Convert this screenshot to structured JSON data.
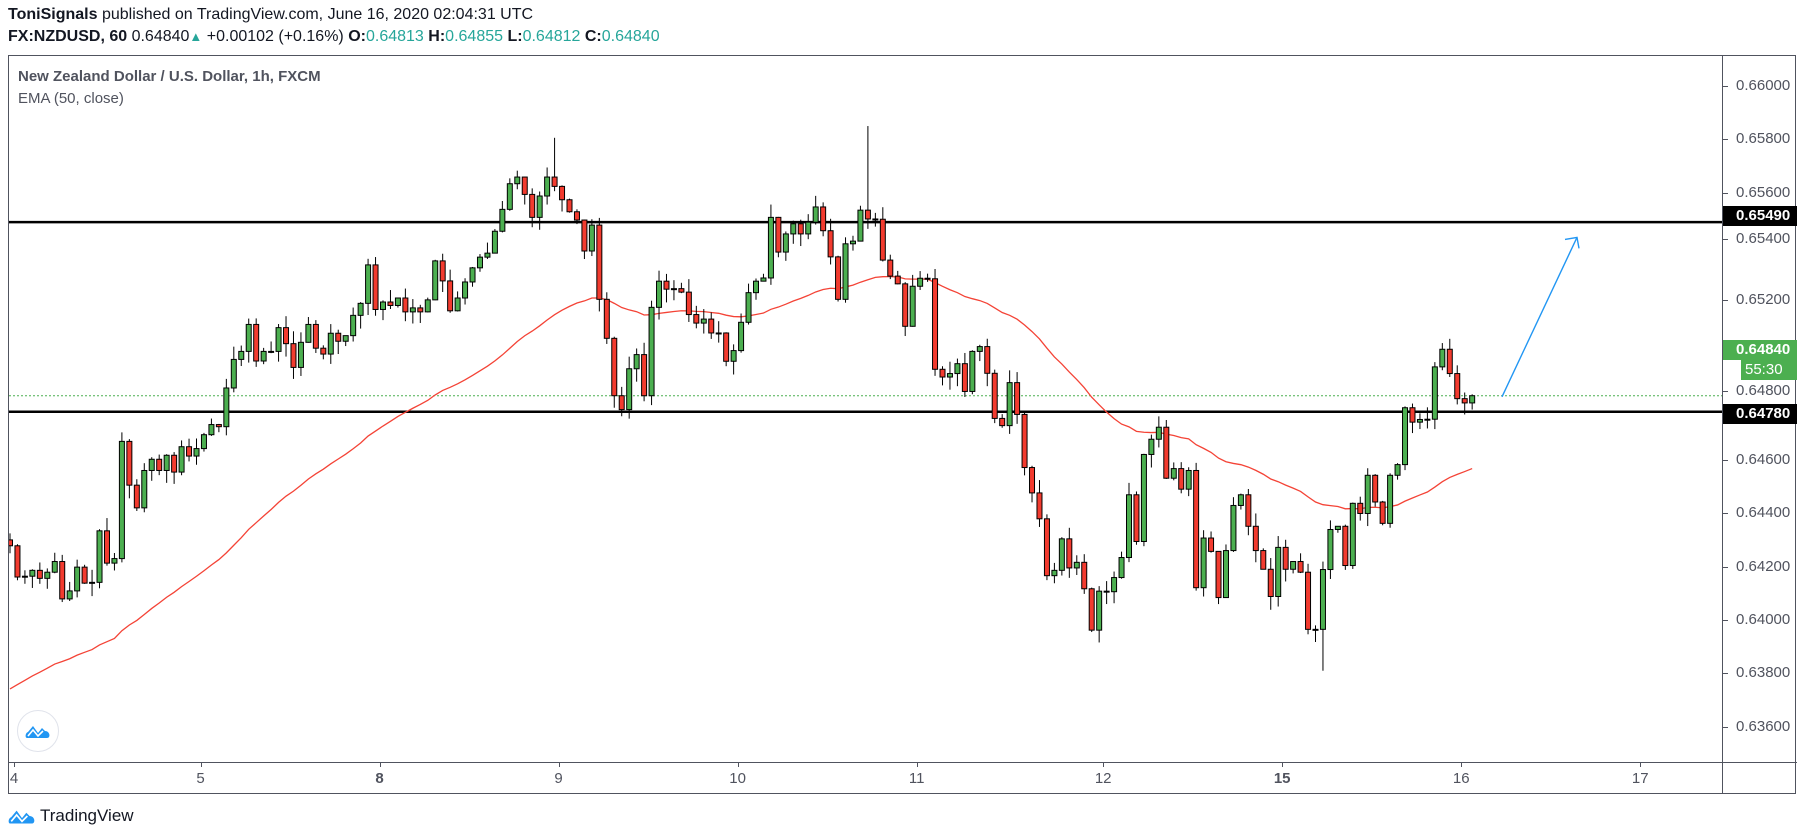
{
  "header": {
    "author": "ToniSignals",
    "published_text": "published on TradingView.com, June 16, 2020 02:04:31 UTC",
    "symbol": "FX:NZDUSD, 60",
    "last": "0.64840",
    "change": "+0.00102 (+0.16%)",
    "o_label": "O:",
    "o": "0.64813",
    "h_label": "H:",
    "h": "0.64855",
    "l_label": "L:",
    "l": "0.64812",
    "c_label": "C:",
    "c": "0.64840"
  },
  "legend": {
    "title": "New Zealand Dollar / U.S. Dollar, 1h, FXCM",
    "indicator": "EMA (50, close)"
  },
  "footer": {
    "brand": "TradingView"
  },
  "colors": {
    "up": "#4caf50",
    "down": "#f23b2f",
    "ema": "#f44336",
    "arrow": "#2196f3",
    "accent": "#26a69a"
  },
  "chart_data": {
    "type": "candlestick",
    "title": "New Zealand Dollar / U.S. Dollar, 1h, FXCM",
    "interval": "1h",
    "ylim": [
      0.635,
      0.6615
    ],
    "y_ticks": [
      "0.66000",
      "0.65800",
      "0.65600",
      "0.65400",
      "0.65200",
      "0.65000",
      "0.64800",
      "0.64600",
      "0.64400",
      "0.64200",
      "0.64000",
      "0.63800",
      "0.63600"
    ],
    "x_ticks": [
      {
        "label": "4",
        "candle_index": 0,
        "bold": false
      },
      {
        "label": "5",
        "candle_index": 25,
        "bold": false
      },
      {
        "label": "8",
        "candle_index": 49,
        "bold": true
      },
      {
        "label": "9",
        "candle_index": 73,
        "bold": false
      },
      {
        "label": "10",
        "candle_index": 97,
        "bold": false
      },
      {
        "label": "11",
        "candle_index": 121,
        "bold": false
      },
      {
        "label": "12",
        "candle_index": 146,
        "bold": false
      },
      {
        "label": "15",
        "candle_index": 170,
        "bold": true
      },
      {
        "label": "16",
        "candle_index": 194,
        "bold": false
      },
      {
        "label": "17",
        "candle_index": 218,
        "bold": false
      }
    ],
    "first_open": 0.643,
    "closes": [
      0.64278,
      0.64161,
      0.64164,
      0.64186,
      0.64156,
      0.64179,
      0.64219,
      0.64079,
      0.64109,
      0.64198,
      0.64138,
      0.64141,
      0.64334,
      0.64213,
      0.6423,
      0.64669,
      0.64505,
      0.6442,
      0.6456,
      0.64602,
      0.6456,
      0.64617,
      0.64554,
      0.64649,
      0.64614,
      0.64642,
      0.64694,
      0.64732,
      0.64724,
      0.64869,
      0.64976,
      0.65006,
      0.65107,
      0.6497,
      0.65006,
      0.65006,
      0.65095,
      0.65035,
      0.64946,
      0.6504,
      0.65107,
      0.65018,
      0.64996,
      0.65074,
      0.65044,
      0.65065,
      0.65141,
      0.65186,
      0.6533,
      0.65163,
      0.65191,
      0.65178,
      0.65206,
      0.65154,
      0.65169,
      0.65154,
      0.65199,
      0.65345,
      0.6527,
      0.65158,
      0.65206,
      0.65266,
      0.65319,
      0.65359,
      0.65374,
      0.65456,
      0.65538,
      0.65634,
      0.65659,
      0.65594,
      0.65508,
      0.65588,
      0.65659,
      0.65624,
      0.65574,
      0.65529,
      0.65498,
      0.65382,
      0.65479,
      0.65201,
      0.65055,
      0.6484,
      0.64788,
      0.64941,
      0.64994,
      0.6484,
      0.65171,
      0.65269,
      0.65239,
      0.65241,
      0.65228,
      0.65144,
      0.65112,
      0.65127,
      0.65075,
      0.65075,
      0.64969,
      0.65009,
      0.65115,
      0.65226,
      0.65269,
      0.65281,
      0.65508,
      0.65378,
      0.65446,
      0.65484,
      0.65446,
      0.6549,
      0.65547,
      0.65458,
      0.6536,
      0.65201,
      0.65409,
      0.65419,
      0.65535,
      0.65502,
      0.65501,
      0.65348,
      0.65288,
      0.65259,
      0.651,
      0.6525,
      0.6528,
      0.65278,
      0.64939,
      0.6491,
      0.64923,
      0.6496,
      0.64856,
      0.65006,
      0.65024,
      0.64924,
      0.64755,
      0.64728,
      0.64889,
      0.6477,
      0.64571,
      0.64476,
      0.64379,
      0.64166,
      0.64186,
      0.64304,
      0.64195,
      0.64216,
      0.64117,
      0.63962,
      0.64108,
      0.64106,
      0.64159,
      0.64234,
      0.64469,
      0.64294,
      0.6462,
      0.64677,
      0.64722,
      0.64531,
      0.64567,
      0.6449,
      0.6456,
      0.64121,
      0.64307,
      0.64257,
      0.64084,
      0.6426,
      0.64429,
      0.64469,
      0.64351,
      0.6426,
      0.6419,
      0.64088,
      0.64272,
      0.6419,
      0.64219,
      0.64179,
      0.63965,
      0.63965,
      0.64189,
      0.64339,
      0.64351,
      0.64204,
      0.64437,
      0.64399,
      0.64542,
      0.64442,
      0.64362,
      0.64542,
      0.64582,
      0.64795,
      0.64741,
      0.64751,
      0.64752,
      0.64948,
      0.65014,
      0.64923,
      0.64829,
      0.64813,
      0.6484
    ],
    "wick_extremes": [
      {
        "index": 73,
        "high": 0.65806
      },
      {
        "index": 115,
        "high": 0.6585
      },
      {
        "index": 176,
        "low": 0.6381
      }
    ],
    "ema": {
      "period": 50,
      "source": "close",
      "seed": 0.6372
    },
    "horizontal_levels": [
      {
        "price": 0.6549,
        "label": "0.65490"
      },
      {
        "price": 0.6478,
        "label": "0.64780"
      }
    ],
    "last_price_line": {
      "price": 0.6484,
      "label": "0.64840",
      "countdown": "55:30"
    },
    "projection_arrow": {
      "from_price": 0.64836,
      "to_price": 0.65433,
      "direction": "up"
    }
  }
}
